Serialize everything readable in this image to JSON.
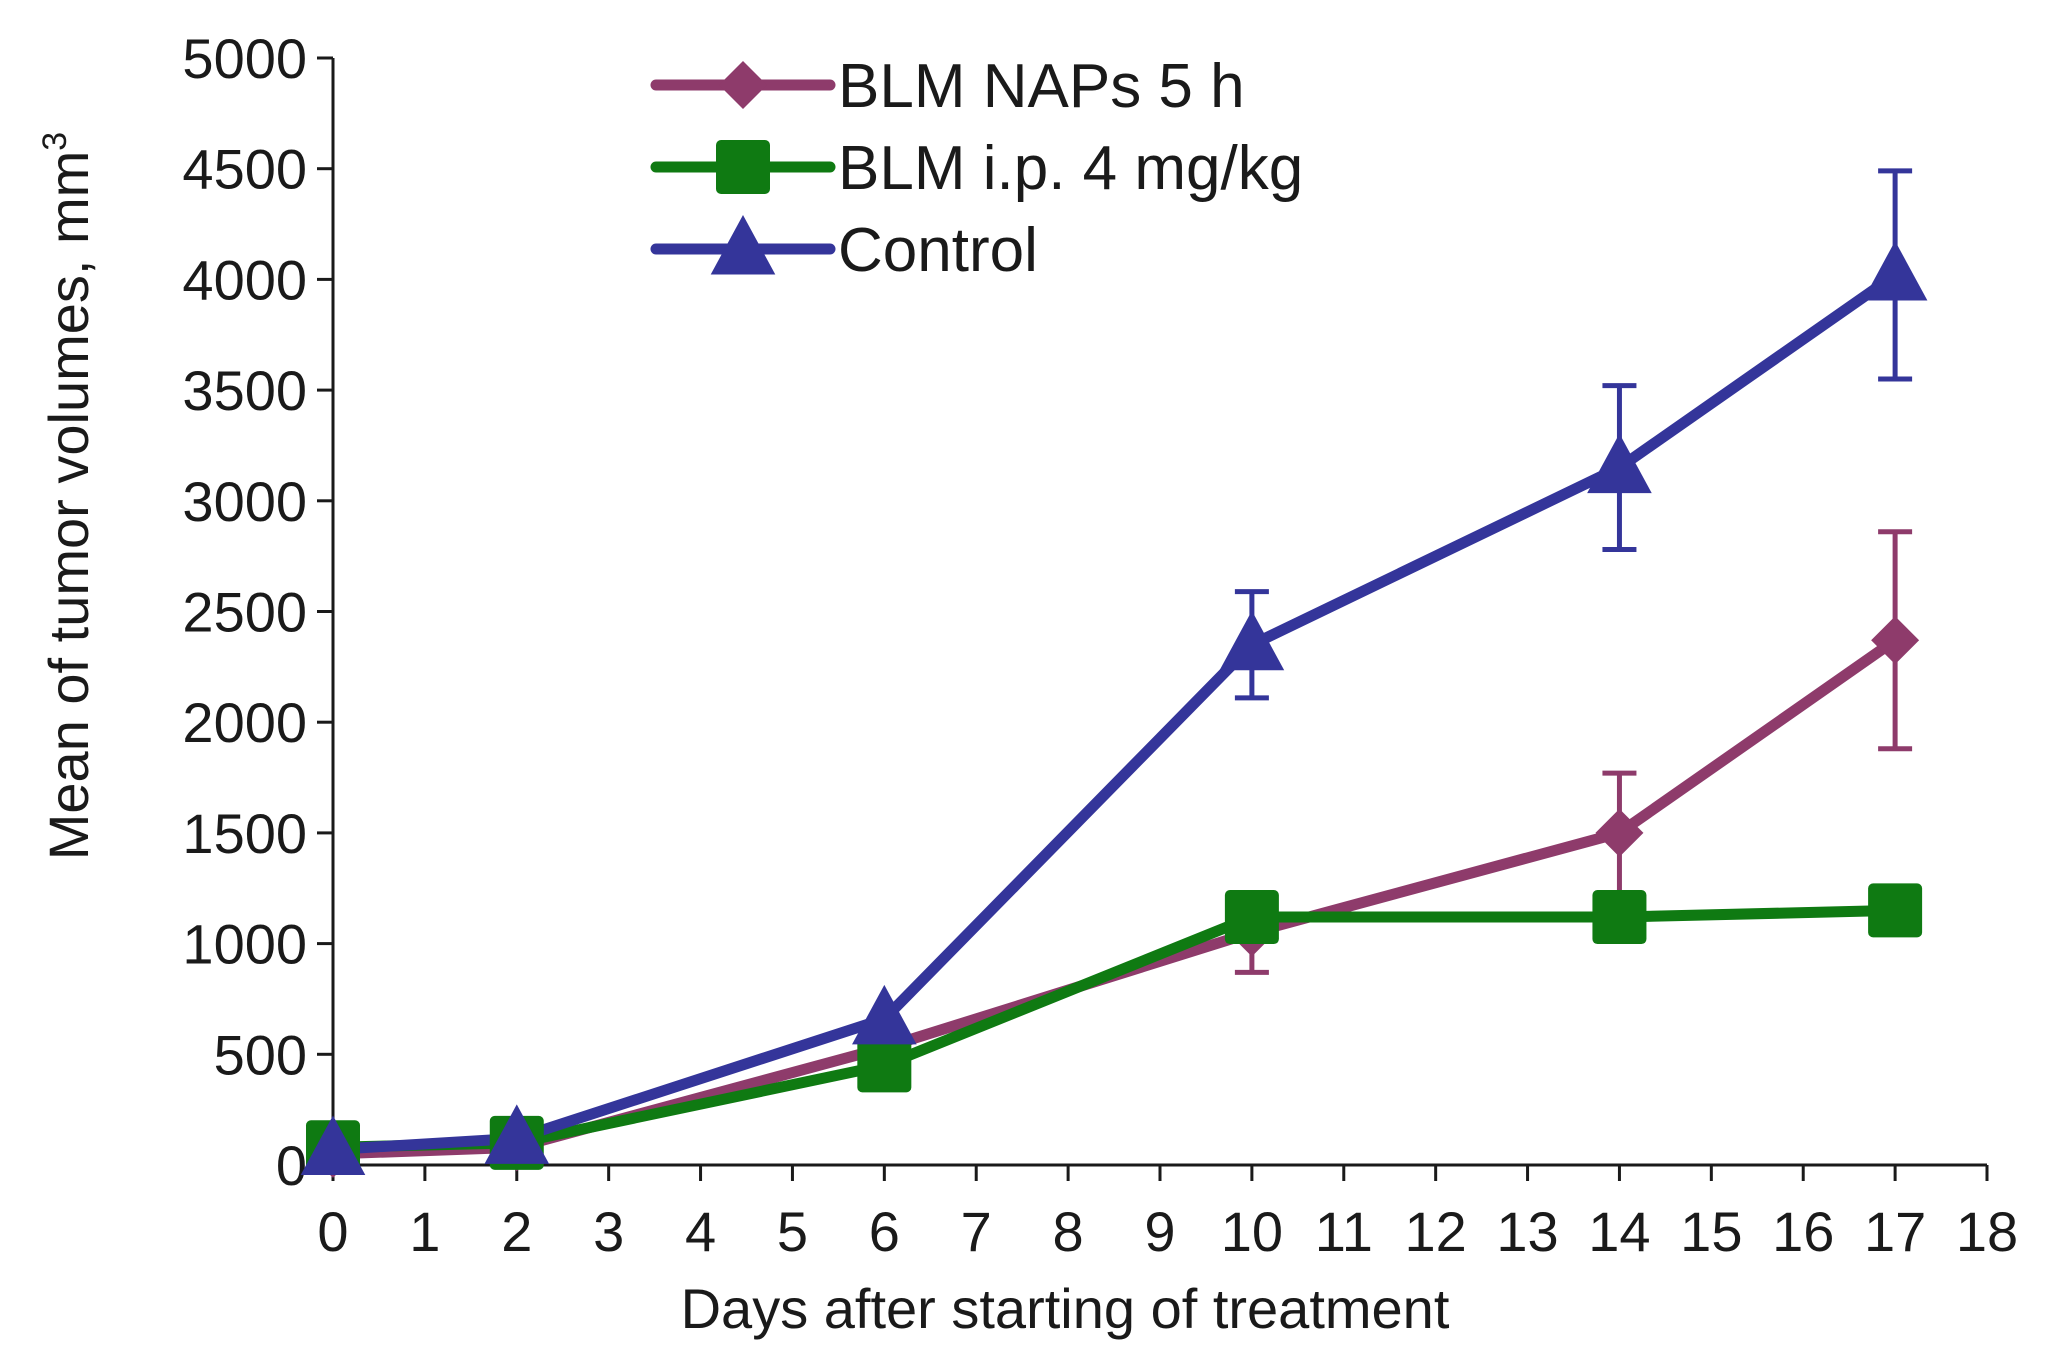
{
  "chart_data": {
    "type": "line",
    "title": "",
    "xlabel": "Days after starting of treatment",
    "ylabel": "Mean of tumor volumes,  mm",
    "ylabel_superscript": "3",
    "xlim": [
      0,
      18
    ],
    "ylim": [
      0,
      5000
    ],
    "xticks": [
      0,
      1,
      2,
      3,
      4,
      5,
      6,
      7,
      8,
      9,
      10,
      11,
      12,
      13,
      14,
      15,
      16,
      17,
      18
    ],
    "yticks": [
      0,
      500,
      1000,
      1500,
      2000,
      2500,
      3000,
      3500,
      4000,
      4500,
      5000
    ],
    "grid": false,
    "legend_position": "top-center",
    "x": [
      0,
      2,
      6,
      10,
      14,
      17
    ],
    "series": [
      {
        "name": "BLM NAPs 5 h",
        "color": "#8e3b6b",
        "marker": "diamond",
        "values": [
          50,
          80,
          530,
          1050,
          1500,
          2370
        ],
        "errors": [
          0,
          0,
          0,
          180,
          270,
          490
        ]
      },
      {
        "name": "BLM i.p. 4 mg/kg",
        "color": "#0f7a12",
        "marker": "square",
        "values": [
          80,
          100,
          450,
          1120,
          1120,
          1150
        ],
        "errors": [
          0,
          0,
          0,
          100,
          100,
          0
        ]
      },
      {
        "name": "Control",
        "color": "#34359a",
        "marker": "triangle",
        "values": [
          70,
          120,
          660,
          2350,
          3150,
          4020
        ],
        "errors": [
          0,
          0,
          0,
          240,
          370,
          470
        ]
      }
    ]
  }
}
